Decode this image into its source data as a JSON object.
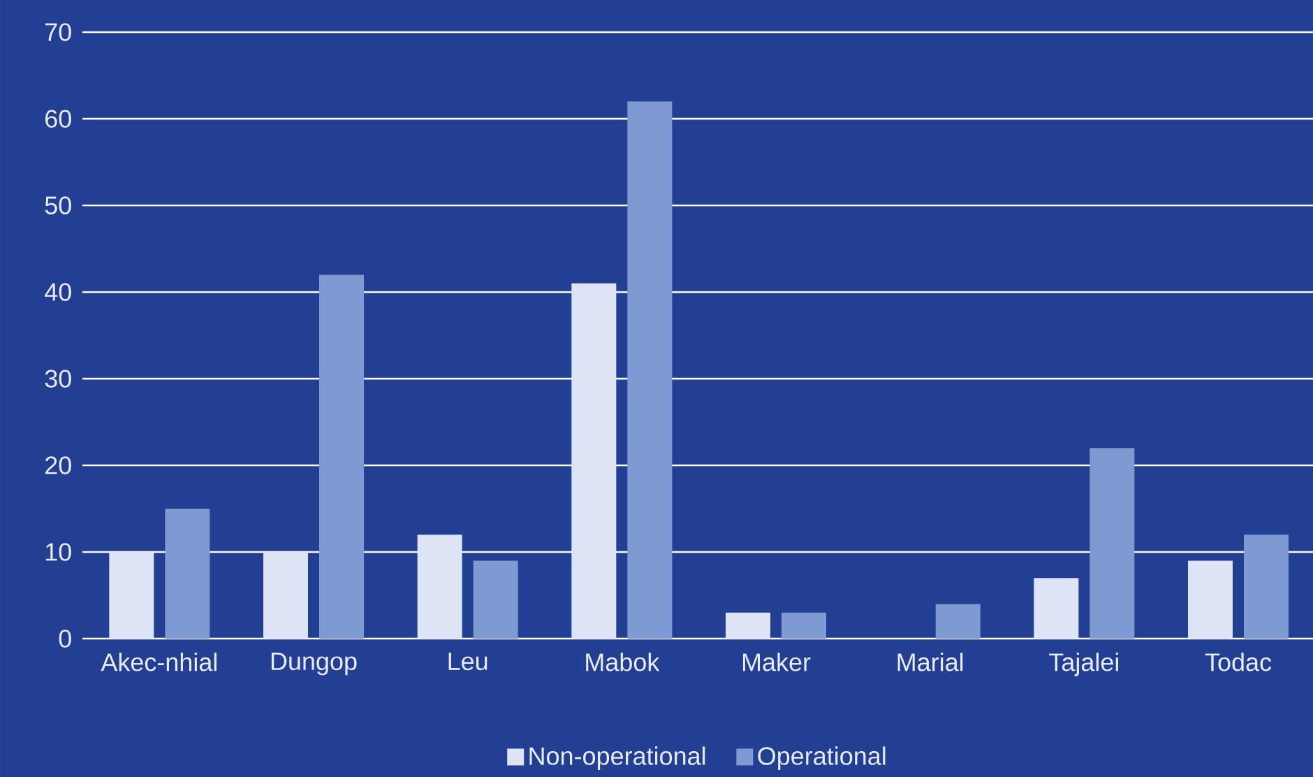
{
  "chart_data": {
    "type": "bar",
    "categories": [
      "Akec-nhial",
      "Dungop",
      "Leu",
      "Mabok",
      "Maker",
      "Marial",
      "Tajalei",
      "Todac"
    ],
    "series": [
      {
        "name": "Non-operational",
        "color": "#dde4f5",
        "values": [
          10,
          10,
          12,
          41,
          3,
          0,
          7,
          9
        ]
      },
      {
        "name": "Operational",
        "color": "#7f9ad2",
        "values": [
          15,
          42,
          9,
          62,
          3,
          4,
          22,
          12
        ]
      }
    ],
    "ylim": [
      0,
      70
    ],
    "yticks": [
      0,
      10,
      20,
      30,
      40,
      50,
      60,
      70
    ],
    "grid": "y",
    "legend": "bottom"
  }
}
